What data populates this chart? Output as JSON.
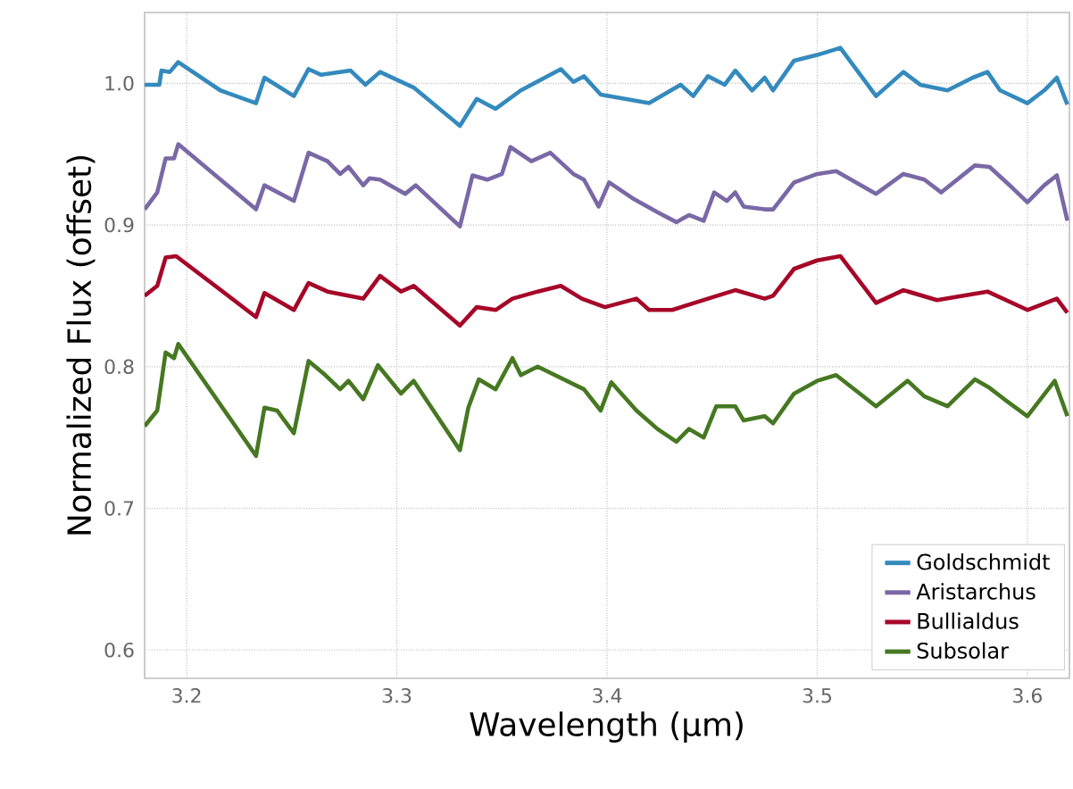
{
  "chart_data": {
    "type": "line",
    "xlabel": "Wavelength (μm)",
    "ylabel": "Normalized Flux (offset)",
    "xlim": [
      3.18,
      3.62
    ],
    "ylim": [
      0.58,
      1.05
    ],
    "xticks": [
      3.2,
      3.3,
      3.4,
      3.5,
      3.6
    ],
    "yticks": [
      0.6,
      0.7,
      0.8,
      0.9,
      {
        "value": 1.0,
        "label": "1.0"
      }
    ],
    "grid": true,
    "legend": "bottom right",
    "line_style": "solid",
    "marker": "none",
    "series": [
      {
        "name": "Goldschmidt",
        "color": "#348abd",
        "x": [
          3.18,
          3.187,
          3.188,
          3.192,
          3.196,
          3.216,
          3.233,
          3.237,
          3.251,
          3.258,
          3.264,
          3.278,
          3.285,
          3.292,
          3.308,
          3.33,
          3.338,
          3.347,
          3.359,
          3.378,
          3.384,
          3.389,
          3.397,
          3.42,
          3.435,
          3.441,
          3.448,
          3.456,
          3.461,
          3.469,
          3.475,
          3.479,
          3.489,
          3.5,
          3.511,
          3.528,
          3.541,
          3.549,
          3.562,
          3.574,
          3.581,
          3.587,
          3.6,
          3.608,
          3.614,
          3.619
        ],
        "values": [
          0.999,
          0.999,
          1.009,
          1.008,
          1.015,
          0.995,
          0.986,
          1.004,
          0.991,
          1.01,
          1.006,
          1.009,
          0.999,
          1.008,
          0.997,
          0.97,
          0.989,
          0.982,
          0.995,
          1.01,
          1.001,
          1.005,
          0.992,
          0.986,
          0.999,
          0.991,
          1.005,
          0.999,
          1.009,
          0.995,
          1.004,
          0.995,
          1.016,
          1.02,
          1.025,
          0.991,
          1.008,
          0.999,
          0.995,
          1.004,
          1.008,
          0.995,
          0.986,
          0.995,
          1.004,
          0.985
        ]
      },
      {
        "name": "Aristarchus",
        "color": "#7a68a6",
        "x": [
          3.18,
          3.186,
          3.19,
          3.194,
          3.196,
          3.233,
          3.237,
          3.251,
          3.258,
          3.267,
          3.273,
          3.277,
          3.284,
          3.287,
          3.292,
          3.304,
          3.309,
          3.33,
          3.336,
          3.343,
          3.35,
          3.354,
          3.364,
          3.373,
          3.384,
          3.389,
          3.396,
          3.401,
          3.412,
          3.424,
          3.433,
          3.439,
          3.446,
          3.451,
          3.457,
          3.461,
          3.465,
          3.475,
          3.479,
          3.489,
          3.5,
          3.509,
          3.528,
          3.541,
          3.551,
          3.559,
          3.575,
          3.582,
          3.593,
          3.6,
          3.608,
          3.614,
          3.619
        ],
        "values": [
          0.911,
          0.923,
          0.947,
          0.947,
          0.957,
          0.911,
          0.928,
          0.917,
          0.951,
          0.945,
          0.936,
          0.941,
          0.928,
          0.933,
          0.932,
          0.922,
          0.928,
          0.899,
          0.935,
          0.932,
          0.936,
          0.955,
          0.945,
          0.951,
          0.936,
          0.932,
          0.913,
          0.93,
          0.919,
          0.909,
          0.902,
          0.907,
          0.903,
          0.923,
          0.917,
          0.923,
          0.913,
          0.911,
          0.911,
          0.93,
          0.936,
          0.938,
          0.922,
          0.936,
          0.932,
          0.923,
          0.942,
          0.941,
          0.926,
          0.916,
          0.928,
          0.935,
          0.903
        ]
      },
      {
        "name": "Bullialdus",
        "color": "#a60628",
        "x": [
          3.18,
          3.186,
          3.19,
          3.195,
          3.233,
          3.237,
          3.251,
          3.258,
          3.267,
          3.284,
          3.292,
          3.302,
          3.308,
          3.33,
          3.338,
          3.347,
          3.355,
          3.367,
          3.378,
          3.388,
          3.399,
          3.414,
          3.42,
          3.431,
          3.448,
          3.461,
          3.475,
          3.479,
          3.489,
          3.5,
          3.511,
          3.528,
          3.541,
          3.557,
          3.581,
          3.6,
          3.614,
          3.619
        ],
        "values": [
          0.85,
          0.857,
          0.877,
          0.878,
          0.835,
          0.852,
          0.84,
          0.859,
          0.853,
          0.848,
          0.864,
          0.853,
          0.857,
          0.829,
          0.842,
          0.84,
          0.848,
          0.853,
          0.857,
          0.848,
          0.842,
          0.848,
          0.84,
          0.84,
          0.848,
          0.854,
          0.848,
          0.85,
          0.869,
          0.875,
          0.878,
          0.845,
          0.854,
          0.847,
          0.853,
          0.84,
          0.848,
          0.838
        ]
      },
      {
        "name": "Subsolar",
        "color": "#467821",
        "x": [
          3.18,
          3.186,
          3.19,
          3.194,
          3.196,
          3.233,
          3.237,
          3.243,
          3.251,
          3.258,
          3.266,
          3.273,
          3.277,
          3.284,
          3.291,
          3.302,
          3.308,
          3.33,
          3.334,
          3.339,
          3.347,
          3.355,
          3.359,
          3.367,
          3.389,
          3.397,
          3.402,
          3.414,
          3.424,
          3.433,
          3.439,
          3.446,
          3.452,
          3.461,
          3.465,
          3.475,
          3.479,
          3.489,
          3.5,
          3.509,
          3.528,
          3.543,
          3.551,
          3.562,
          3.575,
          3.582,
          3.589,
          3.6,
          3.613,
          3.619
        ],
        "values": [
          0.758,
          0.769,
          0.81,
          0.806,
          0.816,
          0.737,
          0.771,
          0.769,
          0.753,
          0.804,
          0.794,
          0.784,
          0.79,
          0.777,
          0.801,
          0.781,
          0.79,
          0.741,
          0.771,
          0.791,
          0.784,
          0.806,
          0.794,
          0.8,
          0.784,
          0.769,
          0.789,
          0.769,
          0.756,
          0.747,
          0.756,
          0.75,
          0.772,
          0.772,
          0.762,
          0.765,
          0.76,
          0.781,
          0.79,
          0.794,
          0.772,
          0.79,
          0.779,
          0.772,
          0.791,
          0.785,
          0.777,
          0.765,
          0.79,
          0.765
        ]
      }
    ]
  }
}
